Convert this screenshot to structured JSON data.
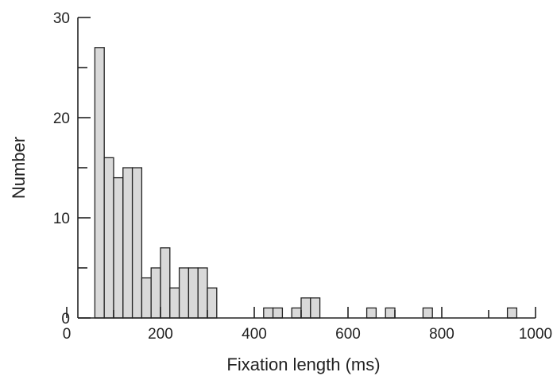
{
  "chart_data": {
    "type": "bar",
    "title": "",
    "xlabel": "Fixation length (ms)",
    "ylabel": "Number",
    "xlim": [
      0,
      1000
    ],
    "ylim": [
      0,
      30
    ],
    "bin_width": 20,
    "x_ticks": [
      0,
      200,
      400,
      600,
      800,
      1000
    ],
    "y_ticks": [
      0,
      10,
      20,
      30
    ],
    "x_tick_labels": [
      "0",
      "200",
      "400",
      "600",
      "800",
      "1000"
    ],
    "y_tick_labels": [
      "0",
      "10",
      "20",
      "30"
    ],
    "grid": false,
    "legend": "none",
    "bar_fill": "#d9d9d9",
    "bar_stroke": "#222222",
    "bins": [
      {
        "x": 60,
        "value": 27
      },
      {
        "x": 80,
        "value": 16
      },
      {
        "x": 100,
        "value": 14
      },
      {
        "x": 120,
        "value": 15
      },
      {
        "x": 140,
        "value": 15
      },
      {
        "x": 160,
        "value": 4
      },
      {
        "x": 180,
        "value": 5
      },
      {
        "x": 200,
        "value": 7
      },
      {
        "x": 220,
        "value": 3
      },
      {
        "x": 240,
        "value": 5
      },
      {
        "x": 260,
        "value": 5
      },
      {
        "x": 280,
        "value": 5
      },
      {
        "x": 300,
        "value": 3
      },
      {
        "x": 420,
        "value": 1
      },
      {
        "x": 440,
        "value": 1
      },
      {
        "x": 480,
        "value": 1
      },
      {
        "x": 500,
        "value": 2
      },
      {
        "x": 520,
        "value": 2
      },
      {
        "x": 640,
        "value": 1
      },
      {
        "x": 680,
        "value": 1
      },
      {
        "x": 760,
        "value": 1
      },
      {
        "x": 940,
        "value": 1
      }
    ]
  }
}
